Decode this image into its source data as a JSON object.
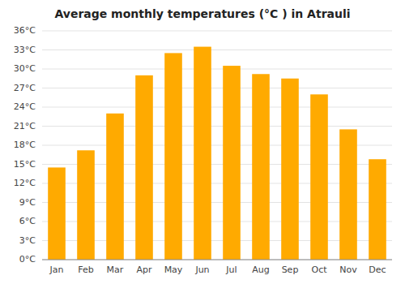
{
  "chart_data": {
    "type": "bar",
    "title": "Average monthly temperatures (°C ) in Atrauli",
    "categories": [
      "Jan",
      "Feb",
      "Mar",
      "Apr",
      "May",
      "Jun",
      "Jul",
      "Aug",
      "Sep",
      "Oct",
      "Nov",
      "Dec"
    ],
    "values": [
      14.5,
      17.2,
      23.0,
      29.0,
      32.5,
      33.5,
      30.5,
      29.2,
      28.5,
      26.0,
      20.5,
      15.8
    ],
    "color": "#FFAA00",
    "ylim": [
      0,
      36
    ],
    "yticks": [
      {
        "value": 0,
        "label": "0°C"
      },
      {
        "value": 3,
        "label": "3°C"
      },
      {
        "value": 6,
        "label": "6°C"
      },
      {
        "value": 9,
        "label": "9°C"
      },
      {
        "value": 12,
        "label": "12°C"
      },
      {
        "value": 15,
        "label": "15°C"
      },
      {
        "value": 18,
        "label": "18°C"
      },
      {
        "value": 21,
        "label": "21°C"
      },
      {
        "value": 24,
        "label": "24°C"
      },
      {
        "value": 27,
        "label": "27°C"
      },
      {
        "value": 30,
        "label": "30°C"
      },
      {
        "value": 33,
        "label": "33°C"
      },
      {
        "value": 36,
        "label": "36°C"
      }
    ],
    "grid": true
  }
}
